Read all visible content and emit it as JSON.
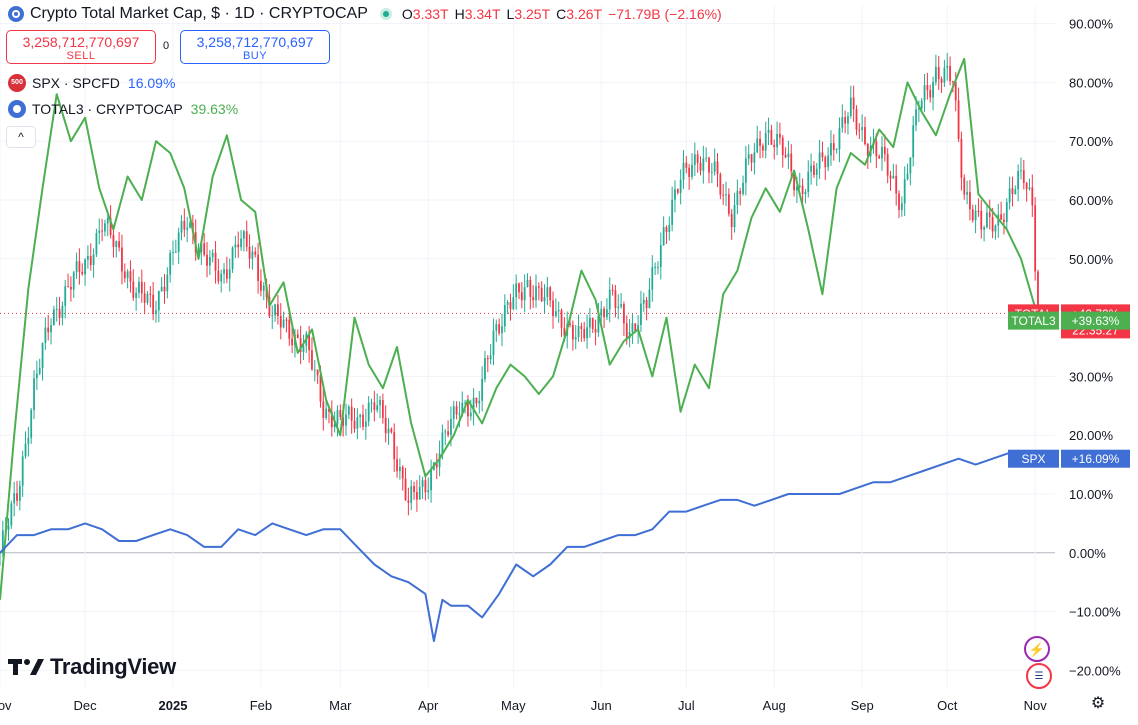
{
  "header": {
    "title": "Crypto Total Market Cap, $ · 1D · CRYPTOCAP",
    "o_label": "O",
    "o_value": "3.33T",
    "h_label": "H",
    "h_value": "3.34T",
    "l_label": "L",
    "l_value": "3.25T",
    "c_label": "C",
    "c_value": "3.26T",
    "change": "−71.79B (−2.16%)"
  },
  "trade": {
    "sell_price": "3,258,712,770,697",
    "sell_label": "SELL",
    "spread": "0",
    "buy_price": "3,258,712,770,697",
    "buy_label": "BUY"
  },
  "legend": [
    {
      "icon_text": "500",
      "name": "SPX · SPCFD",
      "value": "16.09%",
      "color": "#2962ff"
    },
    {
      "name": "TOTAL3 · CRYPTOCAP",
      "value": "39.63%",
      "color": "#4caf50"
    }
  ],
  "collapse_glyph": "^",
  "brand": "TradingView",
  "badges": {
    "total_name": "TOTAL",
    "total_value": "+40.72%",
    "countdown": "22:35:27",
    "total3_name": "TOTAL3",
    "total3_value": "+39.63%",
    "spx_name": "SPX",
    "spx_value": "+16.09%"
  },
  "icons": [
    "crypto-symbol-icon",
    "live-status-icon",
    "lightning-icon",
    "us-flag-icon",
    "settings-icon",
    "collapse-chevron-icon"
  ],
  "colors": {
    "up": "#22ab94",
    "down": "#f23645",
    "total3": "#4caf50",
    "spx": "#3f6fd4",
    "grid": "#f0f3fa"
  },
  "chart_data": {
    "type": "line",
    "y_unit": "percent change",
    "ylim": [
      -23,
      93
    ],
    "y_ticks": [
      "90.00%",
      "80.00%",
      "70.00%",
      "60.00%",
      "50.00%",
      "40.00%",
      "30.00%",
      "20.00%",
      "10.00%",
      "0.00%",
      "−10.00%",
      "−20.00%"
    ],
    "y_tick_values": [
      90,
      80,
      70,
      60,
      50,
      40,
      30,
      20,
      10,
      0,
      -10,
      -20
    ],
    "x_labels": [
      "Nov",
      "Dec",
      "2025",
      "Feb",
      "Mar",
      "Apr",
      "May",
      "Jun",
      "Jul",
      "Aug",
      "Sep",
      "Oct",
      "Nov"
    ],
    "x_label_days": [
      0,
      30,
      61,
      92,
      120,
      151,
      181,
      212,
      242,
      273,
      304,
      334,
      365
    ],
    "x_range_days": [
      0,
      372
    ],
    "grid": true,
    "last_price_level": 40.72,
    "series": [
      {
        "name": "TOTAL",
        "style": "candles",
        "x": [
          0,
          6,
          12,
          18,
          24,
          30,
          36,
          42,
          48,
          54,
          60,
          66,
          72,
          78,
          84,
          90,
          96,
          102,
          108,
          114,
          120,
          126,
          132,
          138,
          144,
          150,
          156,
          162,
          168,
          174,
          180,
          186,
          192,
          198,
          204,
          210,
          216,
          222,
          228,
          234,
          240,
          246,
          252,
          258,
          264,
          270,
          276,
          282,
          288,
          294,
          300,
          306,
          312,
          318,
          324,
          330,
          336,
          338,
          340,
          346,
          352,
          358,
          361,
          364,
          366
        ],
        "values": [
          0,
          10,
          28,
          40,
          45,
          49,
          56,
          51,
          44,
          42,
          49,
          57,
          50,
          47,
          53,
          50,
          40,
          38,
          35,
          25,
          22,
          23,
          25,
          20,
          8,
          12,
          18,
          26,
          24,
          38,
          42,
          46,
          43,
          40,
          36,
          40,
          43,
          38,
          42,
          55,
          63,
          68,
          64,
          58,
          66,
          72,
          68,
          62,
          65,
          70,
          75,
          70,
          66,
          60,
          76,
          82,
          80,
          70,
          62,
          55,
          57,
          62,
          64,
          60,
          41
        ]
      },
      {
        "name": "TOTAL3",
        "style": "line",
        "x": [
          0,
          5,
          10,
          15,
          20,
          25,
          30,
          35,
          40,
          45,
          50,
          55,
          60,
          65,
          70,
          75,
          80,
          85,
          90,
          95,
          100,
          105,
          110,
          115,
          120,
          125,
          130,
          135,
          140,
          145,
          150,
          155,
          160,
          165,
          170,
          175,
          180,
          185,
          190,
          195,
          200,
          205,
          210,
          215,
          220,
          225,
          230,
          235,
          240,
          245,
          250,
          255,
          260,
          265,
          270,
          275,
          280,
          285,
          290,
          295,
          300,
          305,
          310,
          315,
          320,
          325,
          330,
          335,
          340,
          345,
          350,
          355,
          360,
          366
        ],
        "values": [
          -8,
          20,
          45,
          62,
          78,
          70,
          74,
          62,
          55,
          64,
          60,
          70,
          68,
          62,
          50,
          64,
          71,
          60,
          58,
          42,
          46,
          34,
          38,
          26,
          20,
          40,
          32,
          28,
          35,
          22,
          13,
          16,
          20,
          26,
          22,
          28,
          32,
          30,
          27,
          30,
          38,
          48,
          43,
          32,
          36,
          38,
          30,
          40,
          24,
          32,
          28,
          44,
          48,
          57,
          62,
          58,
          65,
          55,
          44,
          62,
          68,
          66,
          72,
          69,
          80,
          75,
          71,
          78,
          84,
          61,
          58,
          55,
          50,
          40
        ]
      },
      {
        "name": "SPX",
        "style": "line",
        "x": [
          0,
          6,
          12,
          18,
          24,
          30,
          36,
          42,
          48,
          54,
          60,
          66,
          72,
          78,
          84,
          90,
          96,
          102,
          108,
          114,
          120,
          126,
          132,
          138,
          144,
          150,
          153,
          156,
          159,
          165,
          170,
          176,
          182,
          188,
          194,
          200,
          206,
          212,
          218,
          224,
          230,
          236,
          242,
          248,
          254,
          260,
          266,
          272,
          278,
          284,
          290,
          296,
          302,
          308,
          314,
          320,
          326,
          332,
          338,
          344,
          350,
          356,
          362,
          366
        ],
        "values": [
          0,
          3,
          3,
          4,
          4,
          5,
          4,
          2,
          2,
          3,
          4,
          3,
          1,
          1,
          4,
          3,
          5,
          4,
          3,
          4,
          4,
          1,
          -2,
          -4,
          -5,
          -7,
          -15,
          -8,
          -9,
          -9,
          -11,
          -7,
          -2,
          -4,
          -2,
          1,
          1,
          2,
          3,
          3,
          4,
          7,
          7,
          8,
          9,
          9,
          8,
          9,
          10,
          10,
          10,
          10,
          11,
          12,
          12,
          13,
          14,
          15,
          16,
          15,
          16,
          17,
          17,
          16
        ]
      }
    ]
  }
}
